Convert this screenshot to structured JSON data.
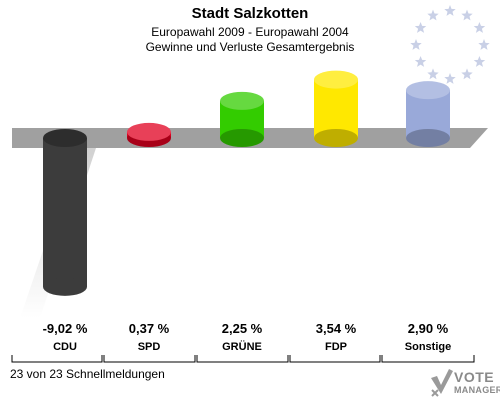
{
  "header": {
    "title": "Stadt Salzkotten",
    "subtitle": "Europawahl 2009 - Europawahl 2004",
    "subtitle2": "Gewinne und Verluste Gesamtergebnis"
  },
  "footer": {
    "text": "23 von 23 Schnellmeldungen"
  },
  "logo": {
    "line1": "VOTE",
    "line2": "MANAGER"
  },
  "eu_flag": {
    "stars": 12,
    "star_color": "#c9d0e6"
  },
  "chart_data": {
    "type": "bar",
    "categories": [
      "CDU",
      "SPD",
      "GRÜNE",
      "FDP",
      "Sonstige"
    ],
    "values": [
      -9.02,
      0.37,
      2.25,
      3.54,
      2.9
    ],
    "value_labels": [
      "-9,02 %",
      "0,37 %",
      "2,25 %",
      "3,54 %",
      "2,90 %"
    ],
    "colors": [
      "#3c3c3c",
      "#e00020",
      "#33cc00",
      "#ffe800",
      "#99a9d9"
    ],
    "title": "Stadt Salzkotten",
    "subtitle": "Europawahl 2009 - Europawahl 2004",
    "xlabel": "",
    "ylabel": "",
    "grid": false
  }
}
